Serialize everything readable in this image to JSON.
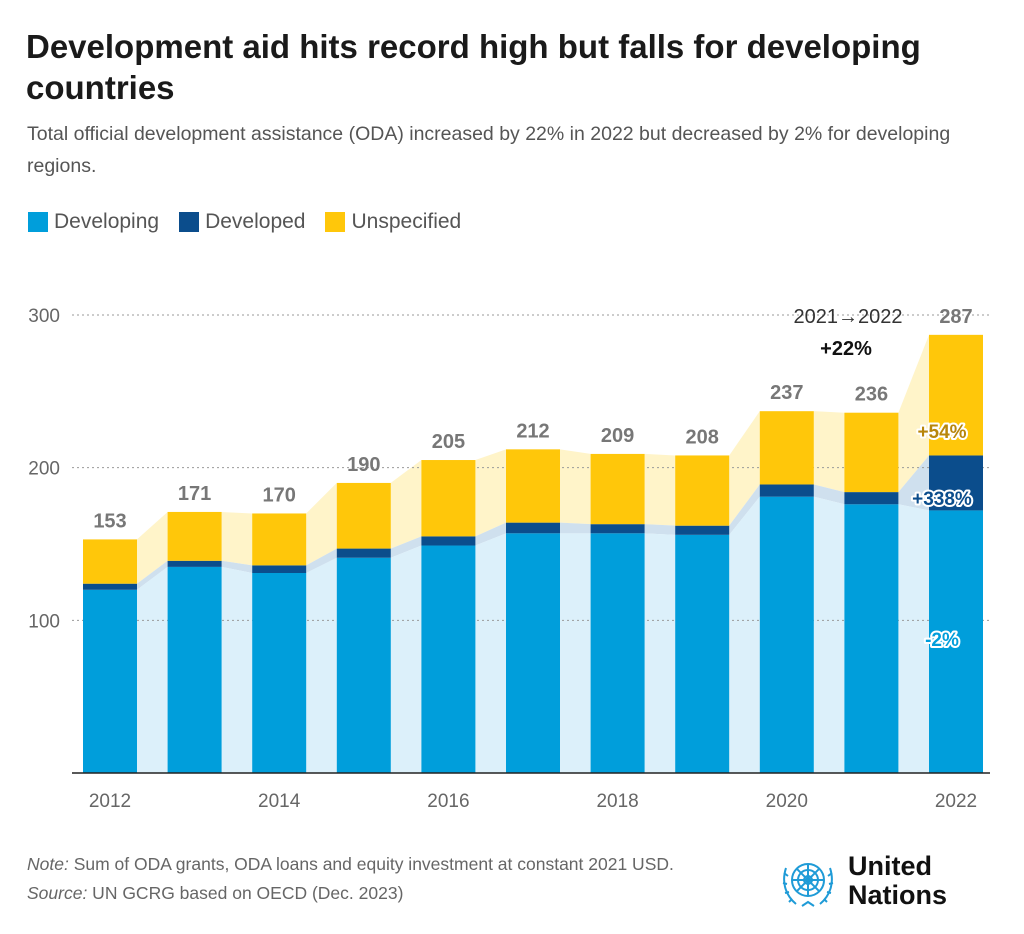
{
  "title": "Development aid hits record high but falls for developing countries",
  "subtitle": "Total official development assistance (ODA) increased by 22% in 2022 but decreased by 2% for developing regions.",
  "footer": {
    "note_label": "Note:",
    "note_text": " Sum of ODA grants, ODA loans and equity investment at constant 2021 USD.",
    "source_label": "Source:",
    "source_text": " UN GCRG based on OECD (Dec. 2023)"
  },
  "logo": {
    "line1": "United",
    "line2": "Nations",
    "icon": "un-emblem-icon"
  },
  "colors": {
    "developing": "#009EDB",
    "developed": "#0B4D8C",
    "unspecified": "#FFC70A",
    "developing_band": "#DCF0FA",
    "unspecified_band": "#FFF4C9"
  },
  "chart_data": {
    "type": "bar",
    "stacked": true,
    "title": "",
    "xlabel": "",
    "ylabel": "",
    "ylim": [
      0,
      300
    ],
    "yticks": [
      100,
      200,
      300
    ],
    "grid": true,
    "legend_position": "top-left",
    "categories": [
      "2012",
      "2013",
      "2014",
      "2015",
      "2016",
      "2017",
      "2018",
      "2019",
      "2020",
      "2021",
      "2022"
    ],
    "x_tick_labels": [
      "2012",
      "",
      "2014",
      "",
      "2016",
      "",
      "2018",
      "",
      "2020",
      "",
      "2022"
    ],
    "series": [
      {
        "name": "Developing",
        "color": "#009EDB",
        "values": [
          120,
          135,
          131,
          141,
          149,
          157,
          157,
          156,
          181,
          176,
          172
        ]
      },
      {
        "name": "Developed",
        "color": "#0B4D8C",
        "values": [
          4,
          4,
          5,
          6,
          6,
          7,
          6,
          6,
          8,
          8,
          36
        ]
      },
      {
        "name": "Unspecified",
        "color": "#FFC70A",
        "values": [
          29,
          32,
          34,
          43,
          50,
          48,
          46,
          46,
          48,
          52,
          79
        ]
      }
    ],
    "totals": [
      153,
      171,
      170,
      190,
      205,
      212,
      209,
      208,
      237,
      236,
      287
    ],
    "total_labels": [
      "153",
      "171",
      "170",
      "190",
      "205",
      "212",
      "209",
      "208",
      "237",
      "236",
      "287"
    ],
    "annotations": {
      "change_period": "2021→2022",
      "total_change": "+22%",
      "unspecified_change": "+54%",
      "developed_change": "+338%",
      "developing_change": "-2%"
    }
  }
}
